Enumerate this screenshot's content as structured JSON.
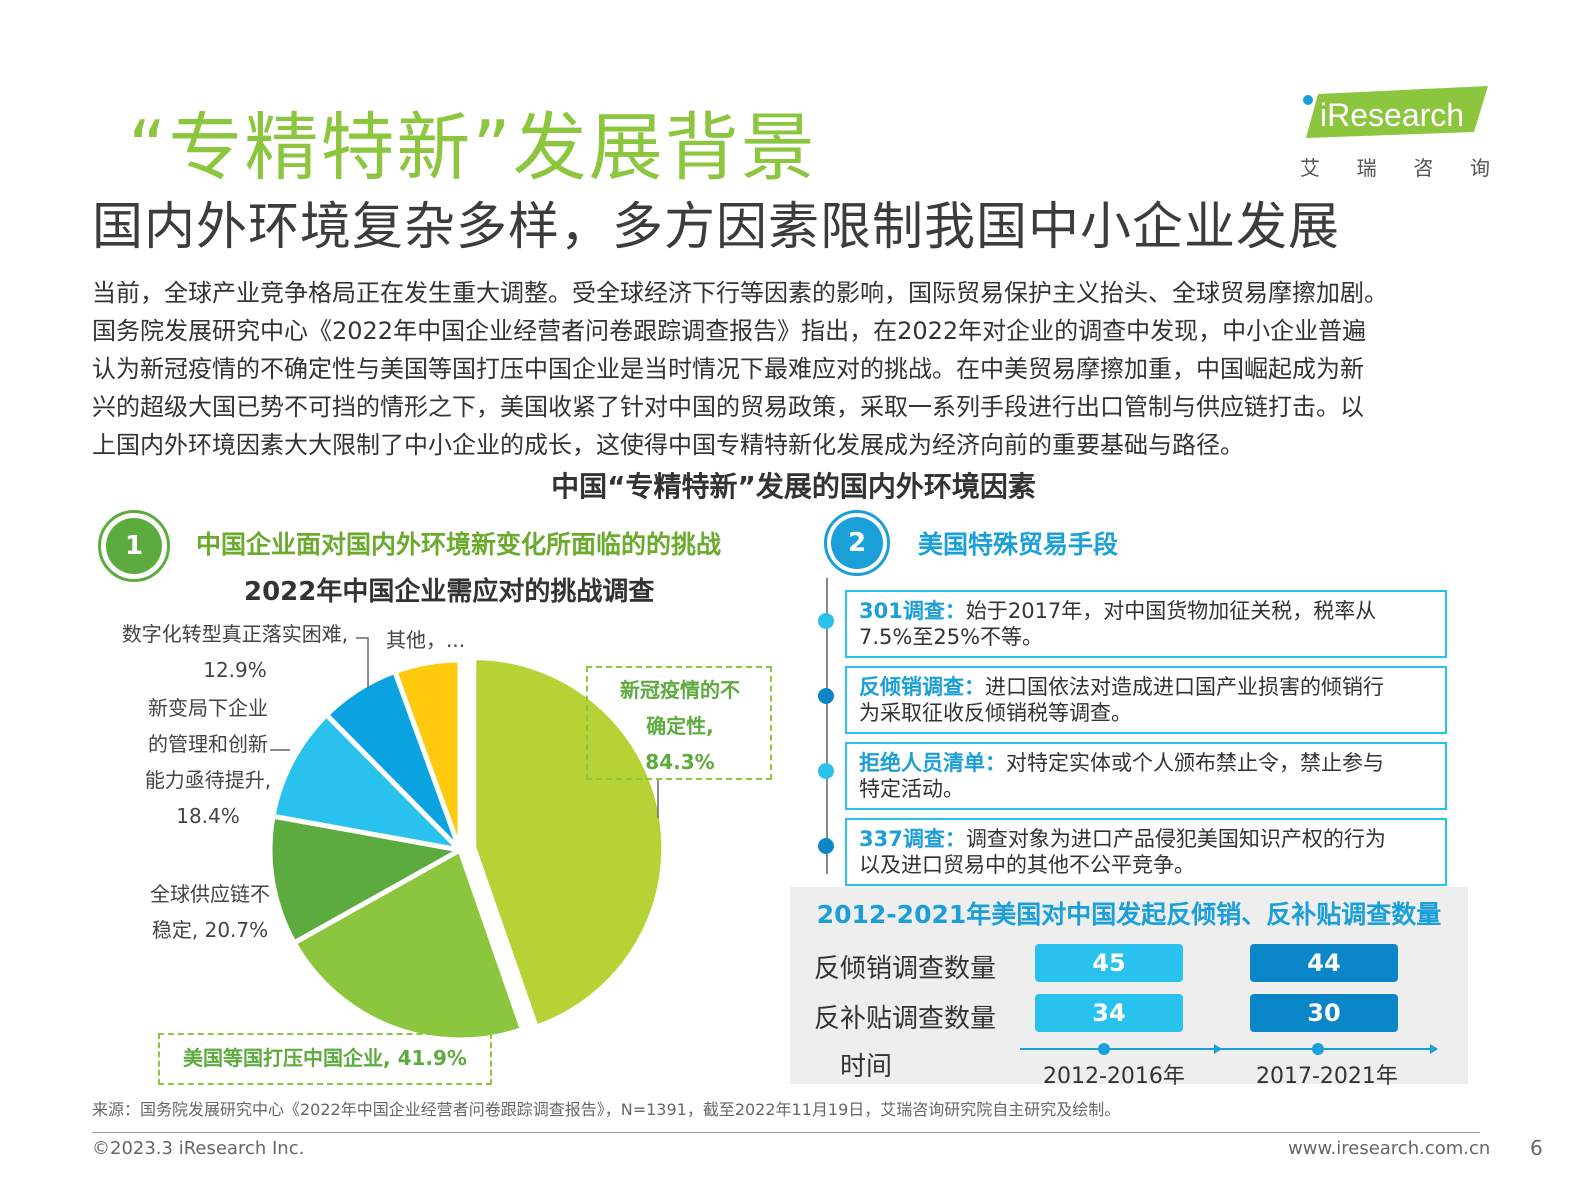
{
  "header": {
    "title": "“专精特新”发展背景",
    "subtitle": "国内外环境复杂多样，多方因素限制我国中小企业发展"
  },
  "logo": {
    "brand": "iResearch",
    "cn_chars": [
      "艾",
      "瑞",
      "咨",
      "询"
    ],
    "accent_color": "#8cc63f"
  },
  "intro_lines": [
    "当前，全球产业竞争格局正在发生重大调整。受全球经济下行等因素的影响，国际贸易保护主义抬头、全球贸易摩擦加剧。",
    "国务院发展研究中心《2022年中国企业经营者问卷跟踪调查报告》指出，在2022年对企业的调查中发现，中小企业普遍",
    "认为新冠疫情的不确定性与美国等国打压中国企业是当时情况下最难应对的挑战。在中美贸易摩擦加重，中国崛起成为新",
    "兴的超级大国已势不可挡的情形之下，美国收紧了针对中国的贸易政策，采取一系列手段进行出口管制与供应链打击。以",
    "上国内外环境因素大大限制了中小企业的成长，这使得中国专精特新化发展成为经济向前的重要基础与路径。"
  ],
  "chart_title": "中国“专精特新”发展的国内外环境因素",
  "section1": {
    "number": "1",
    "label": "中国企业面对国内外环境新变化所面临的的挑战",
    "pie_title": "2022年中国企业需应对的挑战调查"
  },
  "section2": {
    "number": "2",
    "label": "美国特殊贸易手段",
    "items": [
      {
        "name": "301调查：",
        "desc_line1": "始于2017年，对中国货物加征关税，税率从",
        "desc_line2": "7.5%至25%不等。"
      },
      {
        "name": "反倾销调查：",
        "desc_line1": "进口国依法对造成进口国产业损害的倾销行",
        "desc_line2": "为采取征收反倾销税等调查。"
      },
      {
        "name": "拒绝人员清单：",
        "desc_line1": "对特定实体或个人颁布禁止令，禁止参与",
        "desc_line2": "特定活动。"
      },
      {
        "name": "337调查：",
        "desc_line1": "调查对象为进口产品侵犯美国知识产权的行为",
        "desc_line2": "以及进口贸易中的其他不公平竞争。"
      }
    ]
  },
  "pie_labels": {
    "covid_line1": "新冠疫情的不",
    "covid_line2": "确定性,",
    "covid_value": "84.3%",
    "us_label": "美国等国打压中国企业, 41.9%",
    "supply_line1": "全球供应链不",
    "supply_line2": "稳定, 20.7%",
    "mgmt_line1": "新变局下企业",
    "mgmt_line2": "的管理和创新",
    "mgmt_line3": "能力亟待提升,",
    "mgmt_value": "18.4%",
    "digital_line1": "数字化转型真正落实困难,",
    "digital_value": "12.9%",
    "other": "其他，..."
  },
  "chart_data": {
    "type": "pie",
    "title": "2022年中国企业需应对的挑战调查",
    "slices": [
      {
        "label": "新冠疫情的不确定性",
        "value": 84.3,
        "color": "#b5d334"
      },
      {
        "label": "美国等国打压中国企业",
        "value": 41.9,
        "color": "#8cc63f"
      },
      {
        "label": "全球供应链不稳定",
        "value": 20.7,
        "color": "#5dab3f"
      },
      {
        "label": "新变局下企业的管理和创新能力亟待提升",
        "value": 18.4,
        "color": "#29c2ee"
      },
      {
        "label": "数字化转型真正落实困难",
        "value": 12.9,
        "color": "#0aa3e0"
      },
      {
        "label": "其他",
        "value": 10.5,
        "color": "#ffc90e"
      }
    ]
  },
  "stats": {
    "title": "2012-2021年美国对中国发起反倾销、反补贴调查数量",
    "row1_label": "反倾销调查数量",
    "row2_label": "反补贴调查数量",
    "axis_label": "时间",
    "period1": "2012-2016年",
    "period2": "2017-2021年",
    "antidumping": [
      "45",
      "44"
    ],
    "countervailing": [
      "34",
      "30"
    ]
  },
  "footer": {
    "source": "来源：国务院发展研究中心《2022年中国企业经营者问卷跟踪调查报告》，N=1391，截至2022年11月19日，艾瑞咨询研究院自主研究及绘制。",
    "copyright": "©2023.3 iResearch Inc.",
    "website": "www.iresearch.com.cn",
    "page": "6"
  }
}
